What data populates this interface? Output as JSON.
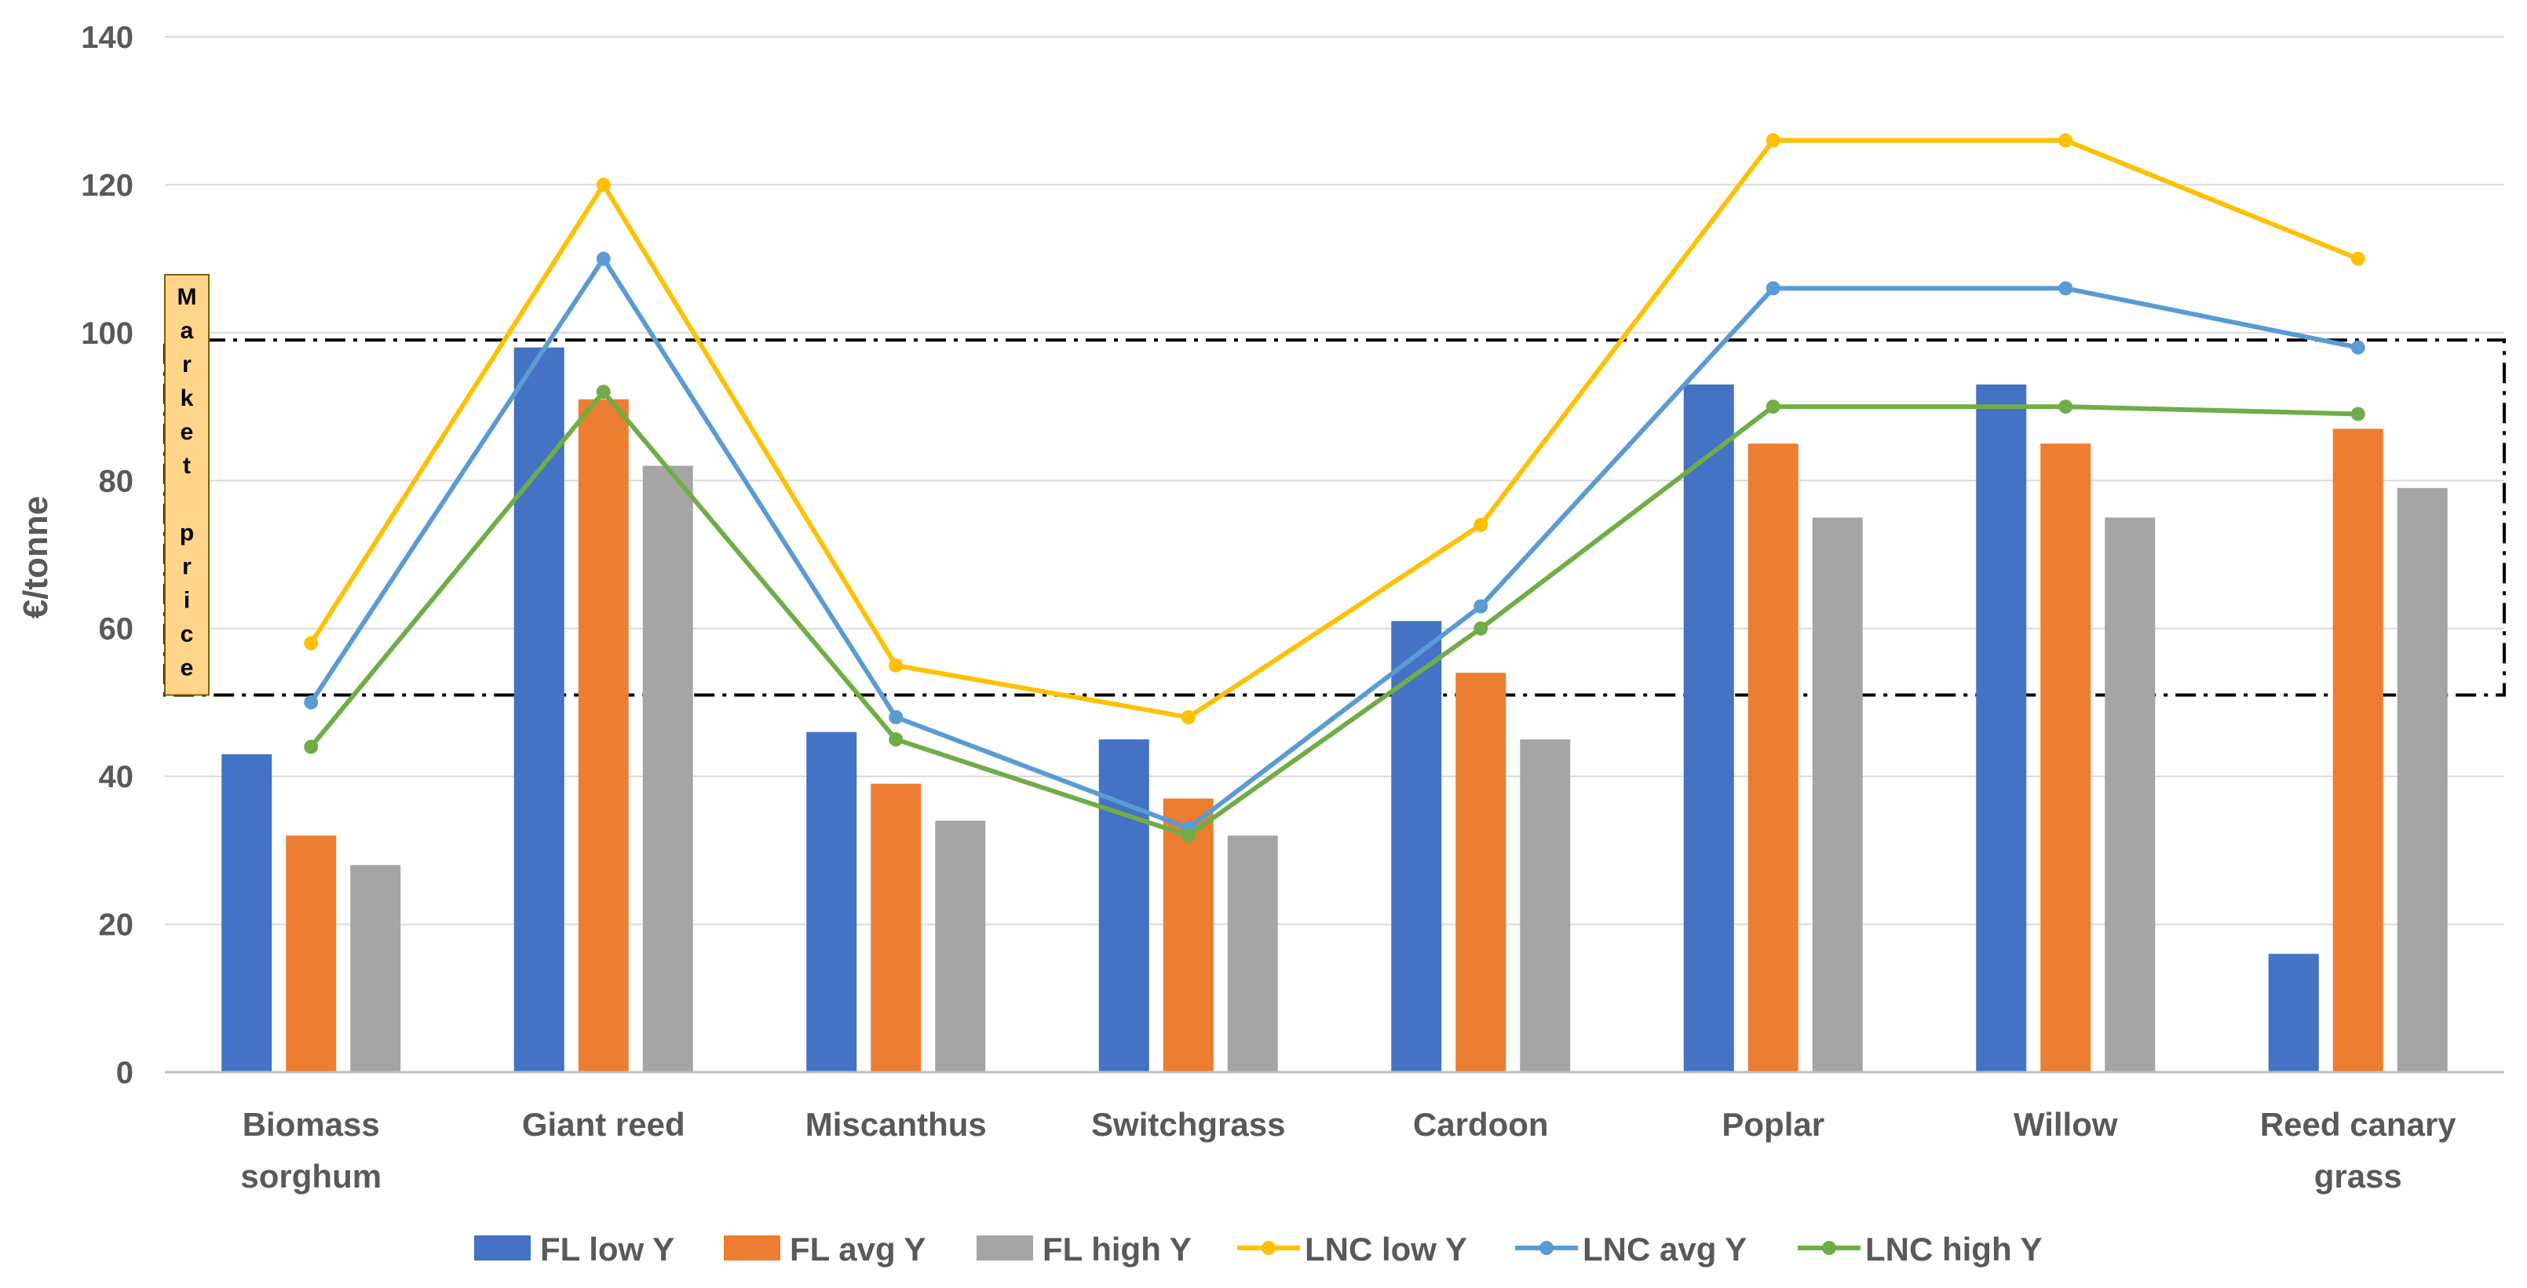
{
  "chart_data": {
    "type": "bar",
    "title": "",
    "xlabel": "",
    "ylabel": "€/tonne",
    "ylim": [
      0,
      140
    ],
    "yticks": [
      0,
      20,
      40,
      60,
      80,
      100,
      120,
      140
    ],
    "grid": true,
    "legend_position": "bottom",
    "categories": [
      [
        "Biomass",
        "sorghum"
      ],
      [
        "Giant reed"
      ],
      [
        "Miscanthus"
      ],
      [
        "Switchgrass"
      ],
      [
        "Cardoon"
      ],
      [
        "Poplar"
      ],
      [
        "Willow"
      ],
      [
        "Reed canary",
        "grass"
      ]
    ],
    "bar_series": [
      {
        "name": "FL low Y",
        "color": "#4472C4",
        "values": [
          43,
          98,
          46,
          45,
          61,
          93,
          93,
          16
        ]
      },
      {
        "name": "FL avg Y",
        "color": "#ED7D31",
        "values": [
          32,
          91,
          39,
          37,
          54,
          85,
          85,
          87
        ]
      },
      {
        "name": "FL high Y",
        "color": "#A5A5A5",
        "values": [
          28,
          82,
          34,
          32,
          45,
          75,
          75,
          79
        ]
      }
    ],
    "line_series": [
      {
        "name": "LNC low Y",
        "color": "#FFC000",
        "values": [
          58,
          120,
          55,
          48,
          74,
          126,
          126,
          110
        ]
      },
      {
        "name": "LNC avg Y",
        "color": "#5B9BD5",
        "values": [
          50,
          110,
          48,
          33,
          63,
          106,
          106,
          98
        ]
      },
      {
        "name": "LNC high Y",
        "color": "#70AD47",
        "values": [
          44,
          92,
          45,
          32,
          60,
          90,
          90,
          89
        ]
      }
    ],
    "annotation": {
      "label": "Market price",
      "range": [
        51,
        99
      ],
      "fill": "#FFD58A"
    }
  }
}
